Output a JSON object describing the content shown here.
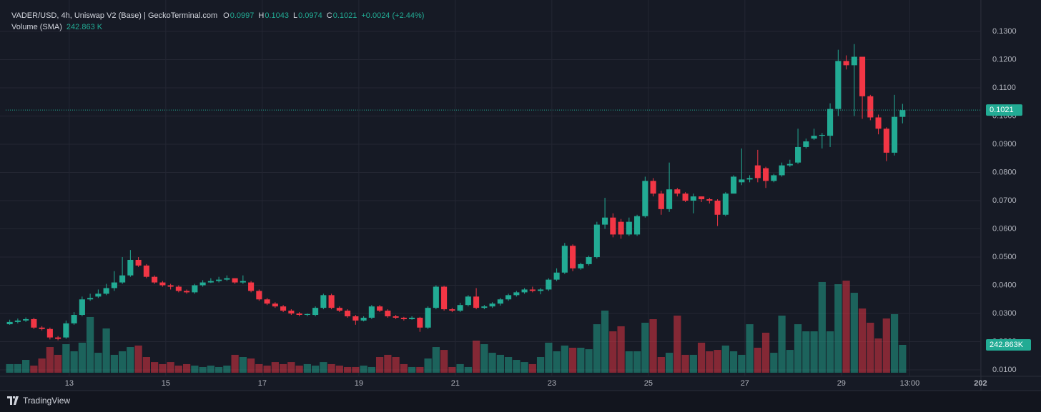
{
  "chart_data": {
    "type": "candlestick",
    "title": "VADER/USD, 4h, Uniswap V2 (Base) | GeckoTerminal.com",
    "ohlc_labels": [
      "O",
      "H",
      "L",
      "C"
    ],
    "change": "+0.0024 (+2.44%)",
    "volume_name": "Volume (SMA)",
    "volume_legend_value": "242.863 K",
    "volume_value_label": "242.863K",
    "footer": "TradingView",
    "up_color": "#22ab94",
    "down_color": "#f23645",
    "volume_up_color": "rgba(34,171,148,0.5)",
    "volume_down_color": "rgba(242,54,69,0.5)",
    "grid": true,
    "xlim": [
      -0.5,
      120.75
    ],
    "xticks": [
      {
        "value": 7.4,
        "label": "13"
      },
      {
        "value": 19.4,
        "label": "15"
      },
      {
        "value": 31.4,
        "label": "17"
      },
      {
        "value": 43.4,
        "label": "19"
      },
      {
        "value": 55.4,
        "label": "21"
      },
      {
        "value": 67.4,
        "label": "23"
      },
      {
        "value": 79.4,
        "label": "25"
      },
      {
        "value": 91.4,
        "label": "27"
      },
      {
        "value": 103.4,
        "label": "29"
      },
      {
        "value": 111.9,
        "label": "13:00"
      },
      {
        "value": 120.7,
        "label": "202"
      }
    ],
    "ylim": [
      0.009,
      0.1391
    ],
    "yticks": [
      {
        "value": 0.01,
        "label": "0.0100"
      },
      {
        "value": 0.02,
        "label": "0.0200"
      },
      {
        "value": 0.03,
        "label": "0.0300"
      },
      {
        "value": 0.04,
        "label": "0.0400"
      },
      {
        "value": 0.05,
        "label": "0.0500"
      },
      {
        "value": 0.06,
        "label": "0.0600"
      },
      {
        "value": 0.07,
        "label": "0.0700"
      },
      {
        "value": 0.08,
        "label": "0.0800"
      },
      {
        "value": 0.09,
        "label": "0.0900"
      },
      {
        "value": 0.1,
        "label": "0.1000"
      },
      {
        "value": 0.11,
        "label": "0.1100"
      },
      {
        "value": 0.12,
        "label": "0.1200"
      },
      {
        "value": 0.13,
        "label": "0.1300"
      }
    ],
    "volume_ylim": [
      0,
      3200
    ],
    "open": [
      0.0262,
      0.027,
      0.0275,
      0.028,
      0.025,
      0.0245,
      0.0215,
      0.0215,
      0.0265,
      0.0295,
      0.035,
      0.036,
      0.037,
      0.039,
      0.041,
      0.0435,
      0.049,
      0.047,
      0.043,
      0.041,
      0.04,
      0.0395,
      0.038,
      0.0375,
      0.04,
      0.041,
      0.0415,
      0.042,
      0.0425,
      0.041,
      0.041,
      0.038,
      0.035,
      0.0335,
      0.0325,
      0.031,
      0.03,
      0.0295,
      0.0295,
      0.032,
      0.0365,
      0.032,
      0.031,
      0.029,
      0.0275,
      0.0285,
      0.0325,
      0.031,
      0.029,
      0.0285,
      0.028,
      0.0285,
      0.025,
      0.032,
      0.0395,
      0.0315,
      0.031,
      0.033,
      0.036,
      0.032,
      0.0325,
      0.0335,
      0.035,
      0.0365,
      0.0375,
      0.0385,
      0.038,
      0.0385,
      0.042,
      0.0445,
      0.054,
      0.046,
      0.0475,
      0.05,
      0.0615,
      0.064,
      0.0625,
      0.058,
      0.058,
      0.0645,
      0.077,
      0.0725,
      0.067,
      0.074,
      0.0725,
      0.07,
      0.0715,
      0.0705,
      0.07,
      0.065,
      0.0725,
      0.0765,
      0.0775,
      0.0825,
      0.0815,
      0.077,
      0.079,
      0.0825,
      0.0835,
      0.089,
      0.092,
      0.093,
      0.093,
      0.1025,
      0.1195,
      0.118,
      0.121,
      0.107,
      0.0995,
      0.0955,
      0.087,
      0.0997
    ],
    "high": [
      0.0278,
      0.0282,
      0.0286,
      0.0285,
      0.0255,
      0.025,
      0.022,
      0.0275,
      0.0305,
      0.036,
      0.037,
      0.0385,
      0.0405,
      0.045,
      0.05,
      0.0525,
      0.05,
      0.0475,
      0.0435,
      0.0415,
      0.0405,
      0.04,
      0.0385,
      0.0405,
      0.0418,
      0.0425,
      0.043,
      0.0435,
      0.0425,
      0.0435,
      0.0415,
      0.0385,
      0.0355,
      0.034,
      0.033,
      0.0315,
      0.0305,
      0.03,
      0.0325,
      0.037,
      0.037,
      0.0325,
      0.0315,
      0.0295,
      0.029,
      0.033,
      0.033,
      0.0315,
      0.0295,
      0.0288,
      0.029,
      0.0288,
      0.0325,
      0.04,
      0.0398,
      0.032,
      0.0338,
      0.0365,
      0.039,
      0.033,
      0.034,
      0.0355,
      0.037,
      0.038,
      0.039,
      0.0395,
      0.039,
      0.0425,
      0.046,
      0.055,
      0.0545,
      0.048,
      0.0505,
      0.0625,
      0.071,
      0.0655,
      0.0635,
      0.064,
      0.065,
      0.0785,
      0.078,
      0.0735,
      0.0835,
      0.0745,
      0.073,
      0.0725,
      0.0715,
      0.071,
      0.0705,
      0.073,
      0.079,
      0.0885,
      0.079,
      0.088,
      0.082,
      0.0795,
      0.0835,
      0.0845,
      0.0955,
      0.092,
      0.0955,
      0.094,
      0.1045,
      0.1235,
      0.1215,
      0.1255,
      0.121,
      0.1075,
      0.1005,
      0.096,
      0.1075,
      0.1043
    ],
    "low": [
      0.026,
      0.0265,
      0.027,
      0.0245,
      0.024,
      0.0208,
      0.0205,
      0.021,
      0.026,
      0.029,
      0.0345,
      0.0355,
      0.0365,
      0.038,
      0.0405,
      0.043,
      0.0465,
      0.0425,
      0.0405,
      0.0395,
      0.0385,
      0.0375,
      0.037,
      0.037,
      0.0395,
      0.0408,
      0.041,
      0.0415,
      0.0405,
      0.0405,
      0.0375,
      0.0345,
      0.033,
      0.032,
      0.0305,
      0.0295,
      0.029,
      0.029,
      0.029,
      0.0315,
      0.0315,
      0.0305,
      0.0285,
      0.026,
      0.0272,
      0.028,
      0.0305,
      0.0285,
      0.028,
      0.0275,
      0.0278,
      0.0235,
      0.0245,
      0.0315,
      0.031,
      0.0305,
      0.0305,
      0.0325,
      0.0315,
      0.0315,
      0.032,
      0.0328,
      0.0345,
      0.036,
      0.037,
      0.0375,
      0.0368,
      0.038,
      0.0415,
      0.044,
      0.045,
      0.0455,
      0.047,
      0.0495,
      0.06,
      0.057,
      0.0565,
      0.0575,
      0.0575,
      0.064,
      0.0715,
      0.065,
      0.066,
      0.0715,
      0.0695,
      0.0655,
      0.0695,
      0.069,
      0.061,
      0.0645,
      0.0725,
      0.0755,
      0.0765,
      0.0765,
      0.0745,
      0.0765,
      0.0785,
      0.082,
      0.083,
      0.0885,
      0.0915,
      0.0885,
      0.089,
      0.1,
      0.1165,
      0.1,
      0.099,
      0.0985,
      0.0935,
      0.084,
      0.086,
      0.0974
    ],
    "close": [
      0.027,
      0.0275,
      0.028,
      0.025,
      0.0245,
      0.0215,
      0.021,
      0.0265,
      0.0295,
      0.035,
      0.0355,
      0.037,
      0.039,
      0.041,
      0.0435,
      0.049,
      0.047,
      0.043,
      0.041,
      0.04,
      0.0395,
      0.038,
      0.0375,
      0.04,
      0.041,
      0.0415,
      0.042,
      0.0425,
      0.041,
      0.0415,
      0.038,
      0.035,
      0.0335,
      0.0325,
      0.031,
      0.03,
      0.0295,
      0.0298,
      0.032,
      0.0365,
      0.032,
      0.031,
      0.029,
      0.0275,
      0.0285,
      0.0325,
      0.031,
      0.029,
      0.0285,
      0.028,
      0.0285,
      0.025,
      0.032,
      0.0395,
      0.0315,
      0.031,
      0.033,
      0.036,
      0.032,
      0.0325,
      0.0335,
      0.035,
      0.0365,
      0.0375,
      0.0385,
      0.038,
      0.0385,
      0.042,
      0.0445,
      0.054,
      0.046,
      0.0475,
      0.05,
      0.0615,
      0.064,
      0.058,
      0.058,
      0.0625,
      0.0645,
      0.077,
      0.0725,
      0.067,
      0.074,
      0.0725,
      0.07,
      0.0715,
      0.0705,
      0.07,
      0.065,
      0.0725,
      0.0785,
      0.0775,
      0.078,
      0.078,
      0.077,
      0.079,
      0.0825,
      0.083,
      0.089,
      0.091,
      0.093,
      0.0933,
      0.1025,
      0.1195,
      0.118,
      0.121,
      0.107,
      0.0995,
      0.0955,
      0.087,
      0.0997,
      0.1021
    ],
    "volume": [
      75,
      75,
      112,
      62,
      124,
      224,
      156,
      249,
      187,
      262,
      486,
      174,
      386,
      156,
      187,
      224,
      237,
      137,
      93,
      75,
      93,
      62,
      75,
      62,
      50,
      62,
      50,
      62,
      156,
      137,
      124,
      75,
      62,
      93,
      75,
      93,
      62,
      75,
      62,
      93,
      75,
      62,
      50,
      50,
      62,
      50,
      137,
      156,
      137,
      75,
      50,
      50,
      124,
      224,
      199,
      50,
      75,
      50,
      280,
      249,
      174,
      156,
      137,
      112,
      93,
      75,
      137,
      262,
      187,
      237,
      218,
      218,
      205,
      423,
      542,
      361,
      405,
      187,
      187,
      436,
      467,
      137,
      174,
      498,
      156,
      156,
      262,
      187,
      199,
      237,
      187,
      156,
      423,
      218,
      349,
      174,
      498,
      199,
      423,
      361,
      361,
      791,
      361,
      772,
      803,
      697,
      560,
      436,
      299,
      473,
      511,
      242.863
    ]
  }
}
